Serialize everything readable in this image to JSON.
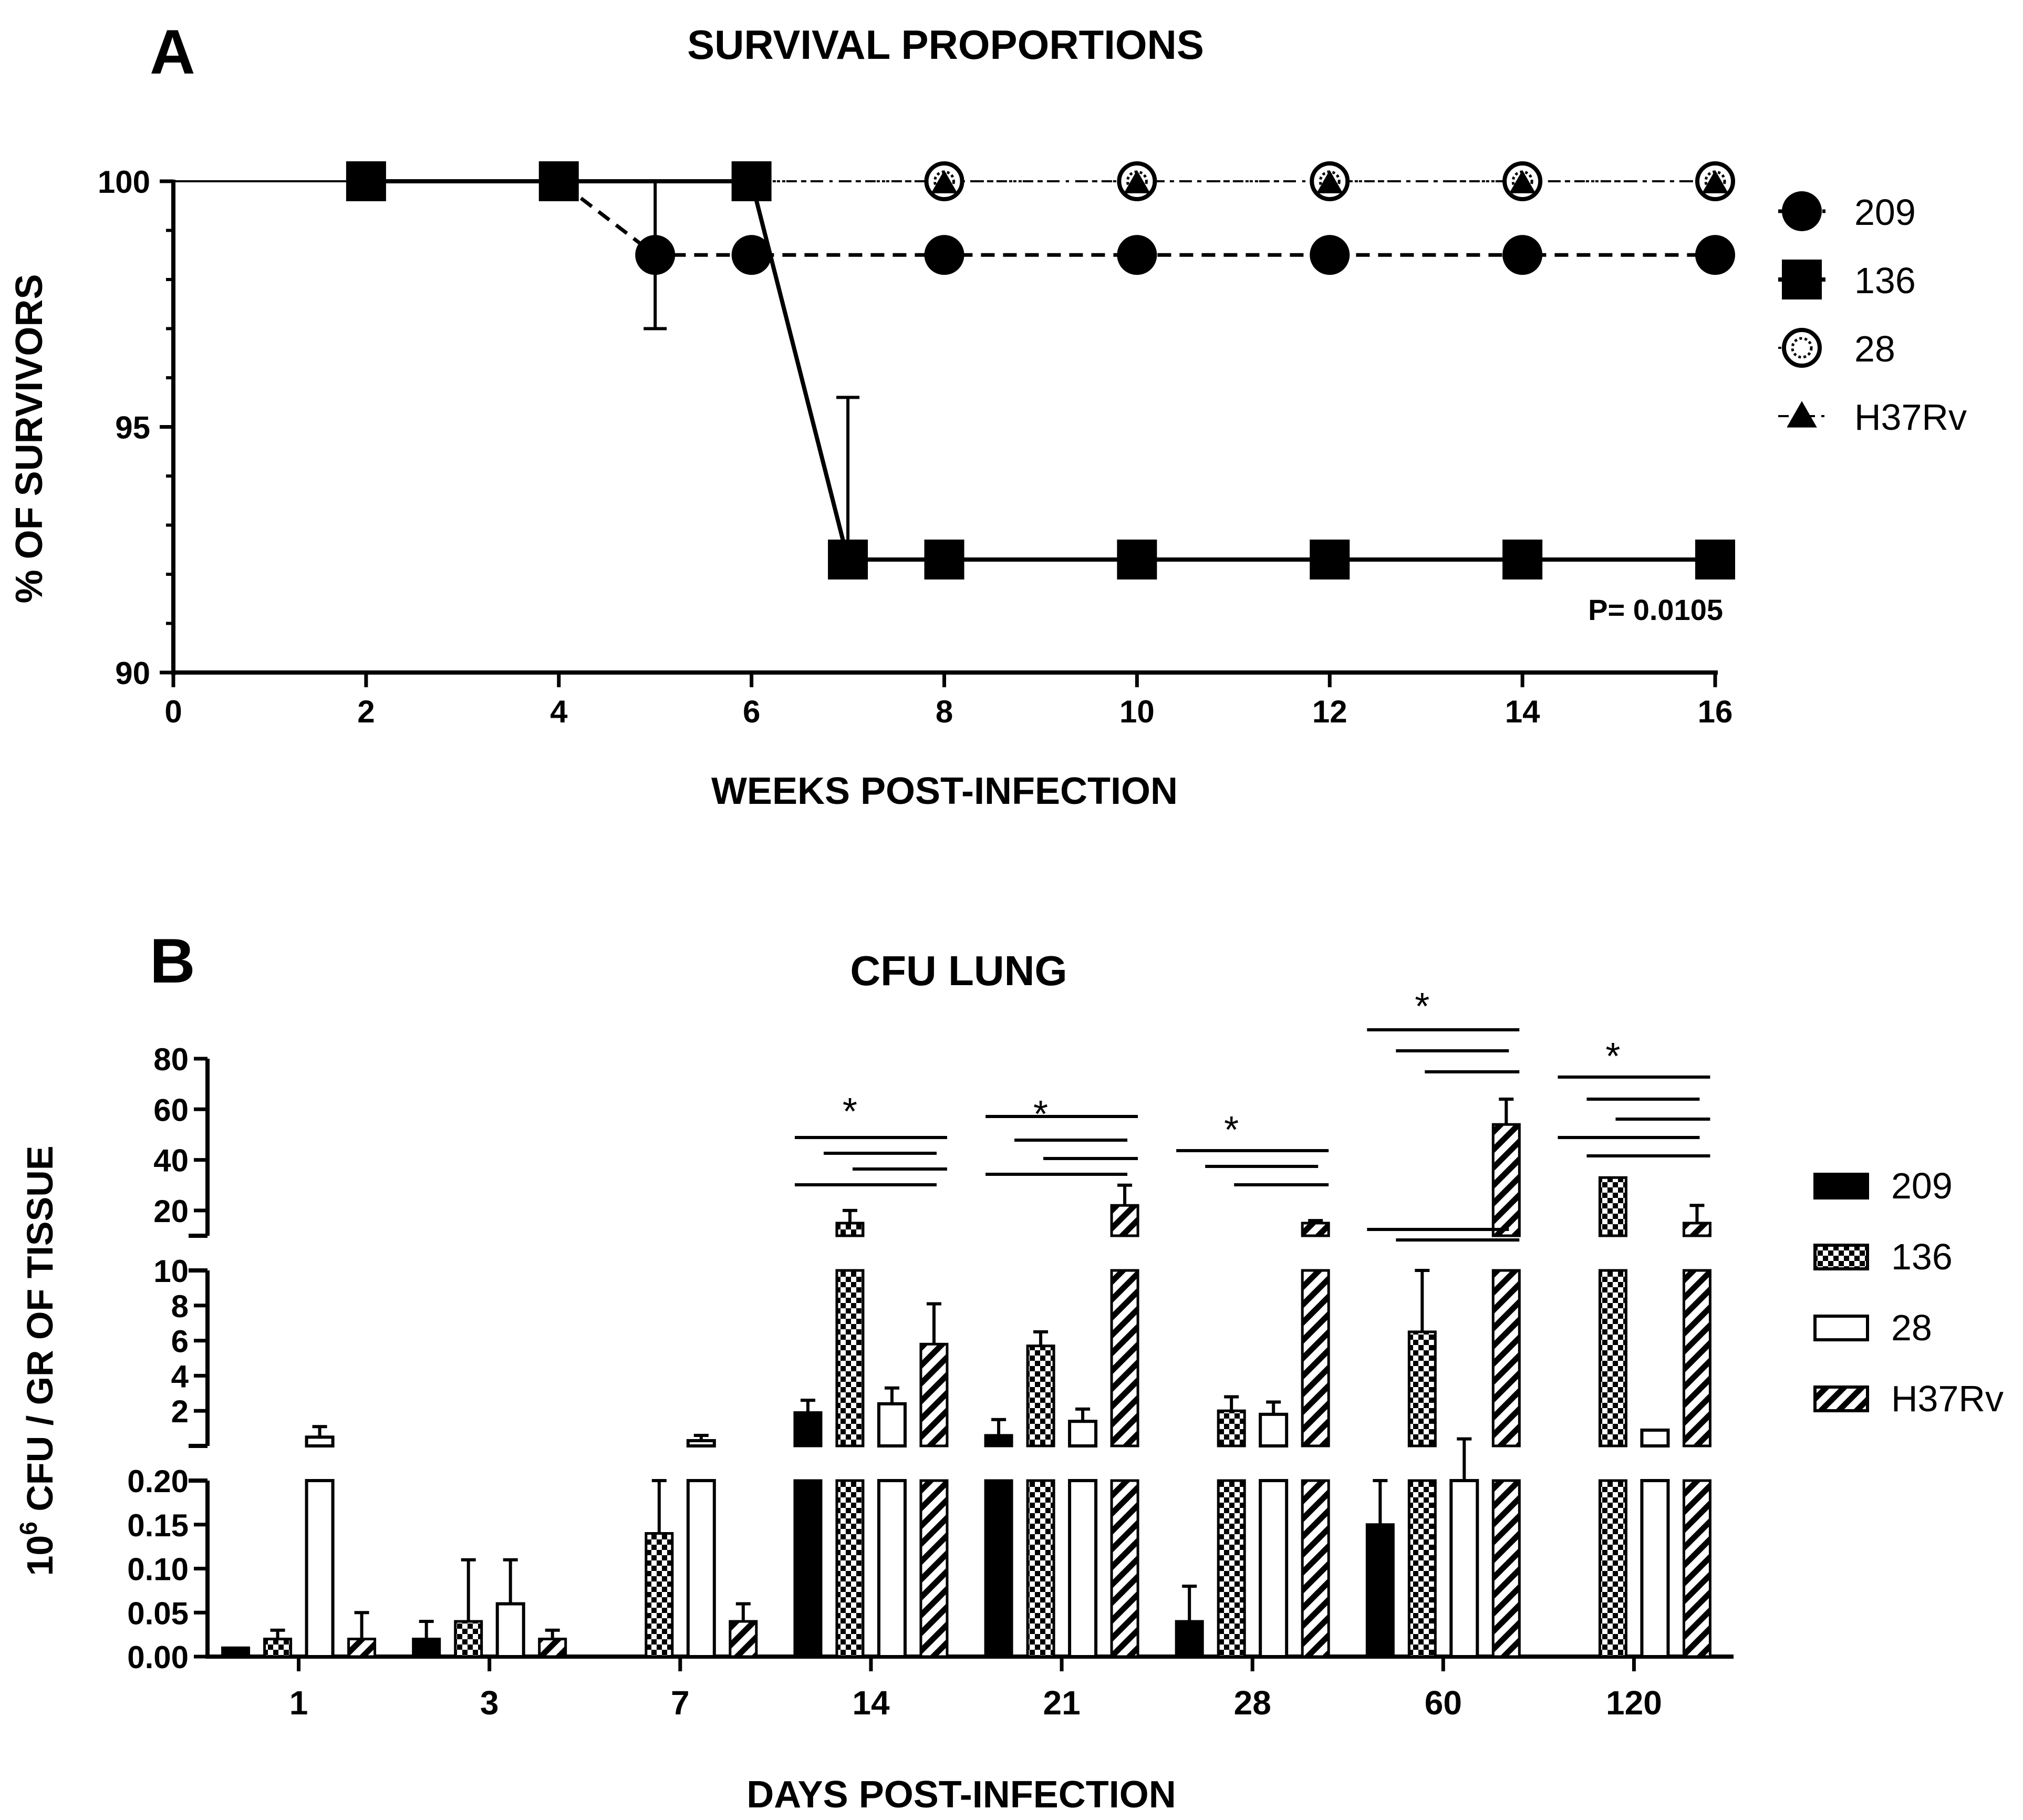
{
  "chart_data": [
    {
      "type": "line",
      "panel_label": "A",
      "title": "SURVIVAL PROPORTIONS",
      "xlabel": "WEEKS POST-INFECTION",
      "ylabel": "% OF SURVIVORS",
      "xlim": [
        0,
        16
      ],
      "ylim": [
        90,
        100
      ],
      "x_ticks": [
        0,
        2,
        4,
        6,
        8,
        10,
        12,
        14,
        16
      ],
      "y_ticks": [
        90,
        95,
        100
      ],
      "annotation": "P= 0.0105",
      "series": [
        {
          "name": "209",
          "marker": "filled-circle",
          "line": "dashed",
          "points": [
            [
              2,
              100
            ],
            [
              4,
              100
            ],
            [
              5,
              98.5
            ],
            [
              6,
              98.5
            ],
            [
              8,
              98.5
            ],
            [
              10,
              98.5
            ],
            [
              12,
              98.5
            ],
            [
              14,
              98.5
            ],
            [
              16,
              98.5
            ]
          ],
          "error_bars": [
            {
              "x": 5,
              "y": 98.5,
              "upper": 100,
              "lower": 97
            }
          ]
        },
        {
          "name": "136",
          "marker": "filled-square",
          "line": "solid",
          "points": [
            [
              2,
              100
            ],
            [
              4,
              100
            ],
            [
              6,
              100
            ],
            [
              7,
              92.3
            ],
            [
              8,
              92.3
            ],
            [
              10,
              92.3
            ],
            [
              12,
              92.3
            ],
            [
              14,
              92.3
            ],
            [
              16,
              92.3
            ]
          ],
          "error_bars": [
            {
              "x": 7,
              "y": 92.3,
              "upper": 95.6,
              "lower": 92.3
            }
          ]
        },
        {
          "name": "28",
          "marker": "open-circle",
          "line": "dotted",
          "points": [
            [
              2,
              100
            ],
            [
              4,
              100
            ],
            [
              6,
              100
            ],
            [
              8,
              100
            ],
            [
              10,
              100
            ],
            [
              12,
              100
            ],
            [
              14,
              100
            ],
            [
              16,
              100
            ]
          ]
        },
        {
          "name": "H37Rv",
          "marker": "filled-triangle",
          "line": "dash-dot",
          "points": [
            [
              2,
              100
            ],
            [
              4,
              100
            ],
            [
              6,
              100
            ],
            [
              8,
              100
            ],
            [
              10,
              100
            ],
            [
              12,
              100
            ],
            [
              14,
              100
            ],
            [
              16,
              100
            ]
          ]
        }
      ]
    },
    {
      "type": "bar",
      "panel_label": "B",
      "title": "CFU LUNG",
      "xlabel": "DAYS POST-INFECTION",
      "ylabel_prefix": "10",
      "ylabel_sup": "6",
      "ylabel_rest": " CFU / GR OF TISSUE",
      "categories": [
        "1",
        "3",
        "7",
        "14",
        "21",
        "28",
        "60",
        "120"
      ],
      "y_segments": [
        {
          "range": [
            0,
            0.2
          ],
          "ticks": [
            "0.00",
            "0.05",
            "0.10",
            "0.15",
            "0.20"
          ]
        },
        {
          "range": [
            0,
            10
          ],
          "ticks": [
            "2",
            "4",
            "6",
            "8",
            "10"
          ]
        },
        {
          "range": [
            10,
            80
          ],
          "ticks": [
            "20",
            "40",
            "60",
            "80"
          ]
        }
      ],
      "series": [
        {
          "name": "209",
          "pattern": "solid-black",
          "values": [
            0.01,
            0.02,
            0,
            1.9,
            0.6,
            0.04,
            0.15,
            0
          ],
          "errors": [
            0,
            0.02,
            0,
            0.7,
            0.9,
            0.04,
            0.05,
            0
          ]
        },
        {
          "name": "136",
          "pattern": "checkered",
          "values": [
            0.02,
            0.04,
            0.14,
            15,
            5.7,
            2.0,
            6.5,
            33
          ],
          "errors": [
            0.01,
            0.07,
            0.06,
            5,
            0.8,
            0.8,
            3.5,
            0
          ]
        },
        {
          "name": "28",
          "pattern": "open-white",
          "values": [
            0.5,
            0.06,
            0.3,
            2.4,
            1.4,
            1.8,
            0.2,
            0.9
          ],
          "errors": [
            0.6,
            0.05,
            0.3,
            0.9,
            0.7,
            0.7,
            0.2,
            0
          ]
        },
        {
          "name": "H37Rv",
          "pattern": "diagonal-hatch",
          "values": [
            0.02,
            0.02,
            0.04,
            5.8,
            22,
            15,
            54,
            15
          ],
          "errors": [
            0.03,
            0.01,
            0.02,
            2.3,
            8,
            1,
            10,
            7
          ]
        }
      ],
      "significance_marker": "*",
      "significance_groups": [
        "14",
        "21",
        "28",
        "60",
        "120"
      ]
    }
  ]
}
